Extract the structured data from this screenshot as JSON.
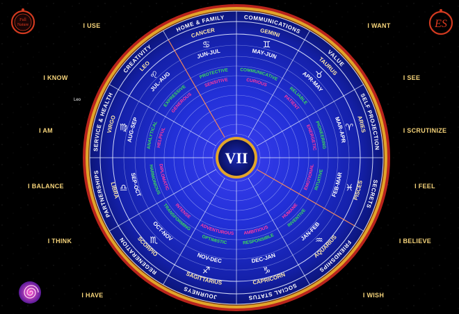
{
  "center": {
    "numeral": "VII"
  },
  "side_labels": {
    "left": [
      "I USE",
      "I KNOW",
      "I AM",
      "I BALANCE",
      "I THINK",
      "I HAVE"
    ],
    "right": [
      "I WANT",
      "I SEE",
      "I SCRUTINIZE",
      "I FEEL",
      "I BELIEVE",
      "I WISH"
    ]
  },
  "small_note": "Leo",
  "logos": {
    "top_left": {
      "line1": "Full",
      "line2": "Nature"
    },
    "top_right": {
      "monogram": "ES"
    },
    "bottom_left": {
      "icon": "spiral-icon"
    }
  },
  "houses": [
    "HOME & FAMILY",
    "CREATIVITY",
    "SERVICE & HEALTH",
    "PARTNERSHIPS",
    "REGENERATION",
    "JOURNEYS",
    "SOCIAL STATUS",
    "FRIENDSHIPS",
    "SECRETS",
    "SELF PROJECTION",
    "VALUE",
    "COMMUNICATIONS"
  ],
  "signs": [
    {
      "name": "CANCER",
      "dates": "JUN-JUL",
      "glyph": "♋",
      "quality": "PROTECTIVE",
      "trait": "SENSITIVE"
    },
    {
      "name": "LEO",
      "dates": "JUL-AUG",
      "glyph": "♌",
      "quality": "EXPRESSIVE",
      "trait": "GENEROUS"
    },
    {
      "name": "VIRGO",
      "dates": "AUG-SEP",
      "glyph": "♍",
      "quality": "ANALYTICAL",
      "trait": "HELPFUL"
    },
    {
      "name": "LIBRA",
      "dates": "SEP-OCT",
      "glyph": "♎",
      "quality": "HARMONIOUS",
      "trait": "DIPLOMATIC"
    },
    {
      "name": "SCORPIO",
      "dates": "OCT-NOV",
      "glyph": "♏",
      "quality": "TRANSFORMING",
      "trait": "INTENSE"
    },
    {
      "name": "SAGITTARIUS",
      "dates": "NOV-DEC",
      "glyph": "♐",
      "quality": "OPTIMISTIC",
      "trait": "ADVENTUROUS"
    },
    {
      "name": "CAPRICORN",
      "dates": "DEC-JAN",
      "glyph": "♑",
      "quality": "RESPONSIBLE",
      "trait": "AMBITIOUS"
    },
    {
      "name": "AQUARIUS",
      "dates": "JAN-FEB",
      "glyph": "♒",
      "quality": "INVENTIVE",
      "trait": "HUMANE"
    },
    {
      "name": "PISCES",
      "dates": "FEB-MAR",
      "glyph": "♓",
      "quality": "INTUITIVE",
      "trait": "EMOTIONAL"
    },
    {
      "name": "ARIES",
      "dates": "MAR-APR",
      "glyph": "♈",
      "quality": "PIONEERING",
      "trait": "ENERGETIC"
    },
    {
      "name": "TAURUS",
      "dates": "APR-MAY",
      "glyph": "♉",
      "quality": "RELIABLE",
      "trait": "PATIENT"
    },
    {
      "name": "GEMINI",
      "dates": "MAY-JUN",
      "glyph": "♊",
      "quality": "COMMUNICATIVE",
      "trait": "CURIOUS"
    }
  ],
  "colors": {
    "background": "#000000",
    "wheel_blue": "#1d2fd0",
    "ring_gold": "#e2a52a",
    "ring_red": "#b9241c",
    "side_label": "#f6d47a",
    "quality_green": "#3ddc5a",
    "trait_pink": "#ff3aa0",
    "trait_red": "#ff4a4a"
  }
}
